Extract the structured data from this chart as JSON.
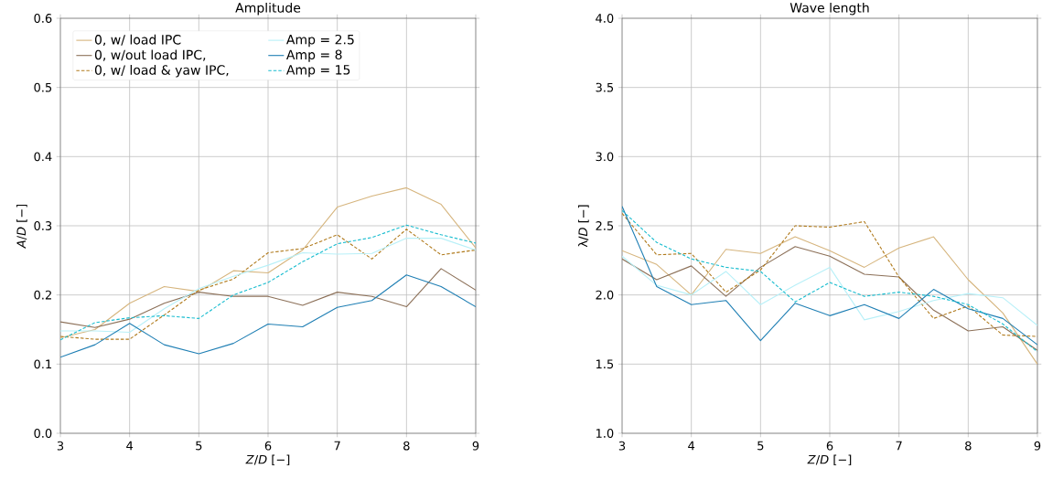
{
  "chart_data": [
    {
      "type": "line",
      "title": "Amplitude",
      "xlabel": "*Z*/*D* [−]",
      "ylabel": "*A*/*D* [−]",
      "x": [
        3,
        3.5,
        4,
        4.5,
        5,
        5.5,
        6,
        6.5,
        7,
        7.5,
        8,
        8.5,
        9
      ],
      "xlim": [
        3,
        9
      ],
      "ylim": [
        0,
        0.6
      ],
      "xticks": [
        3,
        4,
        5,
        6,
        7,
        8,
        9
      ],
      "yticks": [
        {
          "value": 0,
          "label": "0.0"
        },
        0.1,
        0.2,
        0.3,
        0.4,
        0.5,
        0.6
      ],
      "grid": true,
      "legend": "top left",
      "series": [
        {
          "name": "0, w/ load IPC",
          "color": "#d6b57e",
          "line_style": "solid",
          "values": [
            0.138,
            0.15,
            0.188,
            0.212,
            0.205,
            0.235,
            0.232,
            0.265,
            0.327,
            0.343,
            0.355,
            0.331,
            0.268
          ]
        },
        {
          "name": "0, w/out load IPC,",
          "color": "#8c7058",
          "line_style": "solid",
          "values": [
            0.161,
            0.153,
            0.165,
            0.188,
            0.204,
            0.198,
            0.198,
            0.185,
            0.204,
            0.198,
            0.183,
            0.238,
            0.207
          ]
        },
        {
          "name": "0, w/ load & yaw IPC,",
          "color": "#b07a1c",
          "line_style": "dashed",
          "values": [
            0.14,
            0.136,
            0.136,
            0.171,
            0.207,
            0.223,
            0.261,
            0.267,
            0.287,
            0.252,
            0.295,
            0.258,
            0.265
          ]
        },
        {
          "name": "Amp = 2.5",
          "color": "#b8f0f8",
          "line_style": "solid",
          "values": [
            0.148,
            0.148,
            0.146,
            0.18,
            0.209,
            0.227,
            0.243,
            0.261,
            0.259,
            0.26,
            0.282,
            0.282,
            0.265
          ]
        },
        {
          "name": "Amp = 8",
          "color": "#1f7fb4",
          "line_style": "solid",
          "values": [
            0.11,
            0.128,
            0.159,
            0.128,
            0.115,
            0.13,
            0.158,
            0.154,
            0.182,
            0.192,
            0.229,
            0.212,
            0.183
          ]
        },
        {
          "name": "Amp = 15",
          "color": "#17bccf",
          "line_style": "dashed",
          "values": [
            0.135,
            0.16,
            0.167,
            0.17,
            0.166,
            0.2,
            0.218,
            0.248,
            0.274,
            0.283,
            0.301,
            0.287,
            0.275
          ]
        }
      ]
    },
    {
      "type": "line",
      "title": "Wave length",
      "xlabel": "*Z*/*D* [−]",
      "ylabel": "λ/*D* [−]",
      "x": [
        3,
        3.5,
        4,
        4.5,
        5,
        5.5,
        6,
        6.5,
        7,
        7.5,
        8,
        8.5,
        9
      ],
      "xlim": [
        3,
        9
      ],
      "ylim": [
        1.0,
        4.0
      ],
      "xticks": [
        3,
        4,
        5,
        6,
        7,
        8,
        9
      ],
      "yticks": [
        {
          "value": 1.0,
          "label": "1.0"
        },
        1.5,
        {
          "value": 2.0,
          "label": "2.0"
        },
        2.5,
        {
          "value": 3.0,
          "label": "3.0"
        },
        3.5,
        {
          "value": 4.0,
          "label": "4.0"
        }
      ],
      "grid": true,
      "series": [
        {
          "color": "#d6b57e",
          "line_style": "solid",
          "values": [
            2.32,
            2.22,
            2.0,
            2.33,
            2.3,
            2.42,
            2.32,
            2.2,
            2.34,
            2.42,
            2.11,
            1.87,
            1.5
          ]
        },
        {
          "color": "#8c7058",
          "line_style": "solid",
          "values": [
            2.26,
            2.11,
            2.21,
            1.99,
            2.2,
            2.35,
            2.28,
            2.15,
            2.13,
            1.89,
            1.74,
            1.77,
            1.6
          ]
        },
        {
          "color": "#b07a1c",
          "line_style": "dashed",
          "values": [
            2.59,
            2.29,
            2.3,
            2.02,
            2.18,
            2.5,
            2.49,
            2.53,
            2.13,
            1.83,
            1.92,
            1.71,
            1.7
          ]
        },
        {
          "color": "#b8f0f8",
          "line_style": "solid",
          "values": [
            2.28,
            2.07,
            2.0,
            2.17,
            1.93,
            2.07,
            2.2,
            1.82,
            1.88,
            1.96,
            2.01,
            1.98,
            1.78
          ]
        },
        {
          "color": "#1f7fb4",
          "line_style": "solid",
          "values": [
            2.64,
            2.06,
            1.93,
            1.96,
            1.67,
            1.94,
            1.85,
            1.93,
            1.83,
            2.04,
            1.9,
            1.83,
            1.64
          ]
        },
        {
          "color": "#17bccf",
          "line_style": "dashed",
          "values": [
            2.61,
            2.38,
            2.26,
            2.2,
            2.17,
            1.95,
            2.09,
            1.99,
            2.02,
            1.99,
            1.93,
            1.79,
            1.59
          ]
        }
      ]
    }
  ]
}
